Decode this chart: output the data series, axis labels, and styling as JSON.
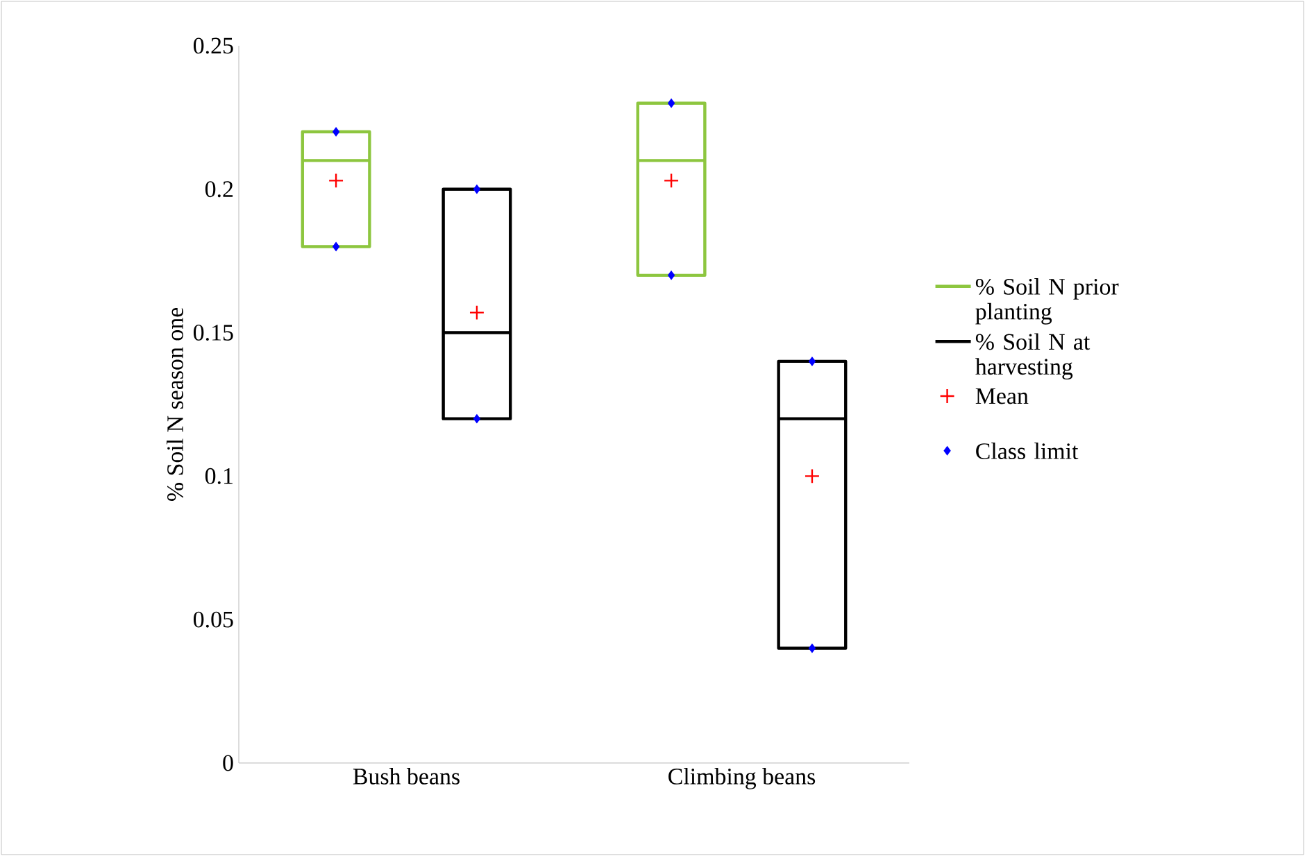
{
  "chart_data": {
    "type": "box",
    "ylabel": "% Soil N season one",
    "categories": [
      "Bush beans",
      "Climbing beans"
    ],
    "ylim": [
      0,
      0.25
    ],
    "yticks": [
      0,
      0.05,
      0.1,
      0.15,
      0.2,
      0.25
    ],
    "grid": false,
    "legend": "right",
    "series": [
      {
        "name": "% Soil N prior planting",
        "type": "box",
        "color": "#8dc63f",
        "boxes": [
          {
            "low": 0.18,
            "q1": 0.18,
            "median": 0.21,
            "q3": 0.22,
            "high": 0.22
          },
          {
            "low": 0.17,
            "q1": 0.17,
            "median": 0.21,
            "q3": 0.23,
            "high": 0.23
          }
        ]
      },
      {
        "name": "% Soil N at harvesting",
        "type": "box",
        "color": "#000000",
        "boxes": [
          {
            "low": 0.12,
            "q1": 0.12,
            "median": 0.15,
            "q3": 0.2,
            "high": 0.2
          },
          {
            "low": 0.04,
            "q1": 0.04,
            "median": 0.12,
            "q3": 0.14,
            "high": 0.14
          }
        ]
      },
      {
        "name": "Mean",
        "type": "scatter",
        "color": "#ff0000",
        "marker": "cross",
        "x": [
          "Bush beans",
          "Bush beans",
          "Climbing beans",
          "Climbing beans"
        ],
        "values": [
          0.203,
          0.157,
          0.203,
          0.1
        ]
      },
      {
        "name": "Class limit",
        "type": "scatter",
        "color": "#0000ff",
        "marker": "diamond",
        "x": [
          "Bush beans",
          "Bush beans",
          "Bush beans",
          "Bush beans",
          "Climbing beans",
          "Climbing beans",
          "Climbing beans",
          "Climbing beans"
        ],
        "values": [
          0.18,
          0.22,
          0.12,
          0.2,
          0.17,
          0.23,
          0.04,
          0.14
        ]
      }
    ]
  }
}
